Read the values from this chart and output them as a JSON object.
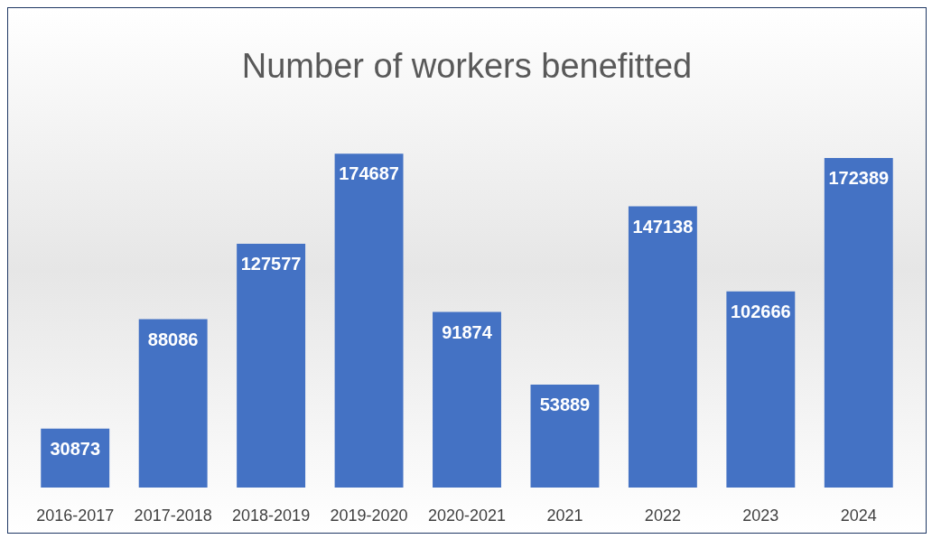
{
  "chart_data": {
    "type": "bar",
    "title": "Number of workers benefitted",
    "categories": [
      "2016-2017",
      "2017-2018",
      "2018-2019",
      "2019-2020",
      "2020-2021",
      "2021",
      "2022",
      "2023",
      "2024"
    ],
    "values": [
      30873,
      88086,
      127577,
      174687,
      91874,
      53889,
      147138,
      102666,
      172389
    ],
    "color": "#4472c4",
    "data_labels": true,
    "tick_labels": "x"
  }
}
